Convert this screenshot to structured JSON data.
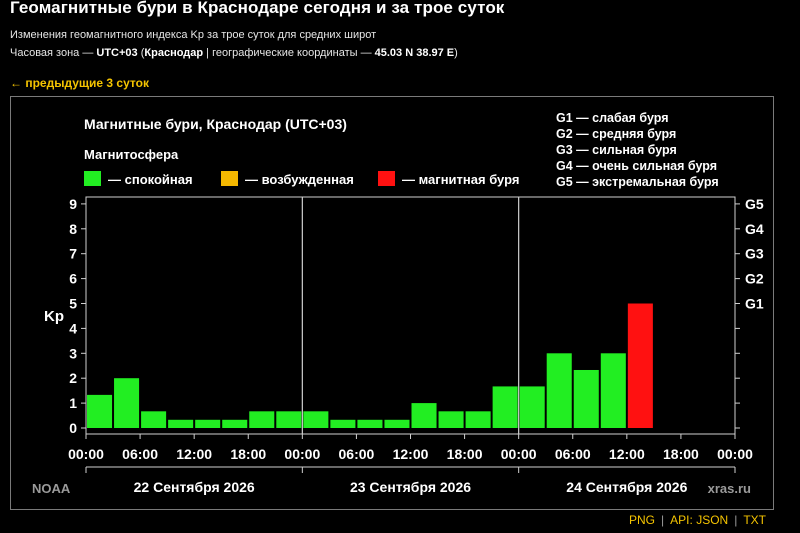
{
  "page": {
    "title": "Геомагнитные бури в Краснодаре сегодня и за трое суток",
    "subtitle": "Изменения геомагнитного индекса Kp за трое суток для средних широт",
    "tz_prefix": "Часовая зона — ",
    "tz_value": "UTC+03",
    "tz_city": "Краснодар",
    "tz_coords_label": " | географические координаты — ",
    "tz_coords": "45.03 N 38.97 E",
    "prev_link": "← предыдущие 3 суток"
  },
  "chart_data": {
    "type": "bar",
    "title": "Магнитные бури, Краснодар (UTC+03)",
    "ylabel": "Kp",
    "ylim": [
      0,
      9
    ],
    "yticks": [
      "0",
      "1",
      "2",
      "3",
      "4",
      "5",
      "6",
      "7",
      "8",
      "9"
    ],
    "gticks": [
      "G1",
      "G2",
      "G3",
      "G4",
      "G5"
    ],
    "gscale": [
      {
        "label": "G1 — слабая буря"
      },
      {
        "label": "G2 — средняя буря"
      },
      {
        "label": "G3 — сильная буря"
      },
      {
        "label": "G4 — очень сильная буря"
      },
      {
        "label": "G5 — экстремальная буря"
      }
    ],
    "legend_title": "Магнитосфера",
    "legend": [
      {
        "label": "— спокойная",
        "color": "#22ee22"
      },
      {
        "label": "— возбужденная",
        "color": "#f5b800"
      },
      {
        "label": "— магнитная буря",
        "color": "#ff1111"
      }
    ],
    "xticks": [
      "00:00",
      "06:00",
      "12:00",
      "18:00",
      "00:00",
      "06:00",
      "12:00",
      "18:00",
      "00:00",
      "06:00",
      "12:00",
      "18:00",
      "00:00"
    ],
    "days": [
      "22 Сентября 2026",
      "23 Сентября 2026",
      "24 Сентября 2026"
    ],
    "values": [
      1.33,
      2.0,
      0.67,
      0.33,
      0.33,
      0.33,
      0.67,
      0.67,
      0.67,
      0.33,
      0.33,
      0.33,
      1.0,
      0.67,
      0.67,
      1.67,
      1.67,
      3.0,
      2.33,
      3.0,
      5.0
    ],
    "colors": {
      "quiet": "#22ee22",
      "storm": "#ff1111"
    },
    "source_left": "NOAA",
    "source_right": "xras.ru"
  },
  "footer": {
    "png": "PNG",
    "api": "API:",
    "json": "JSON",
    "txt": "TXT"
  }
}
